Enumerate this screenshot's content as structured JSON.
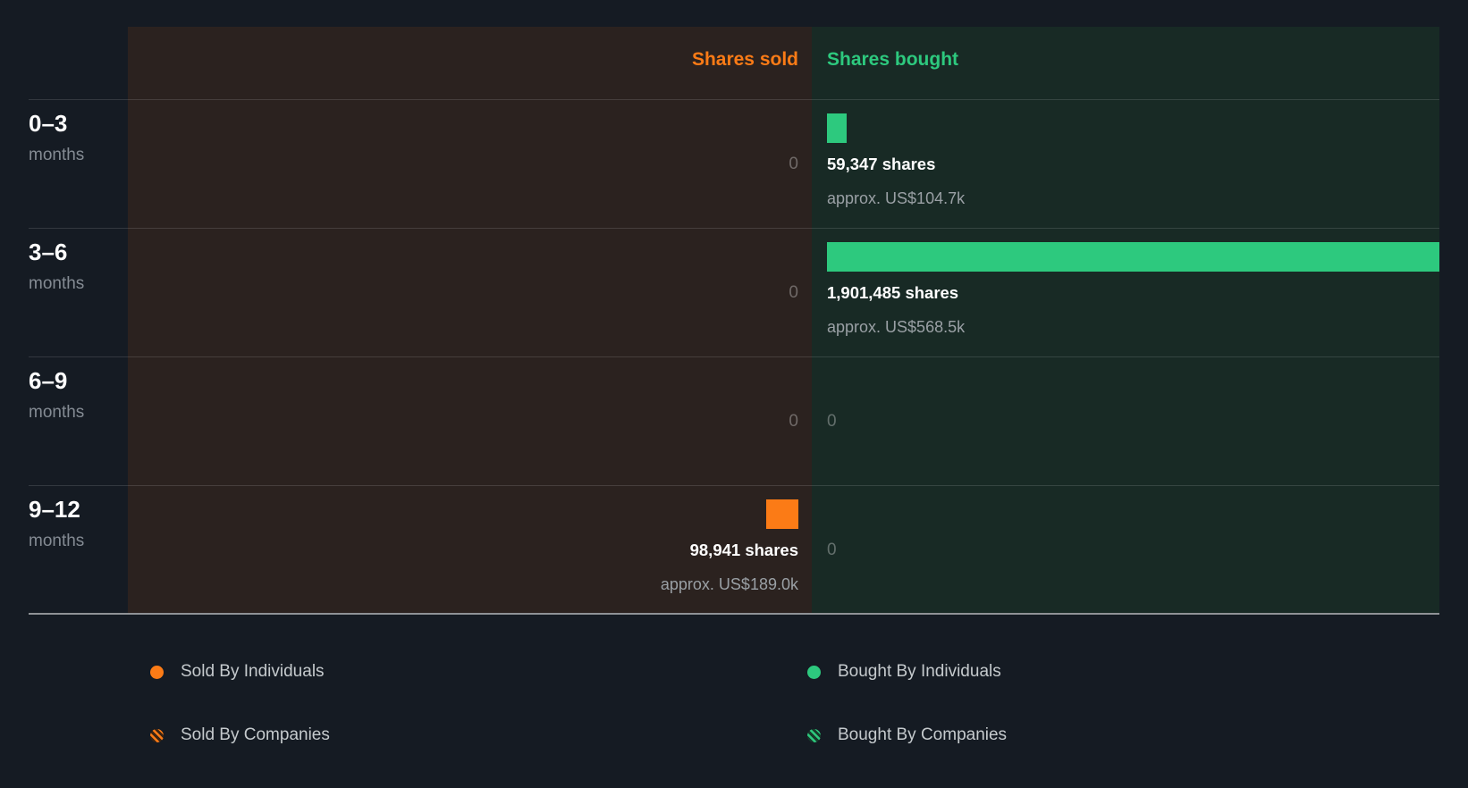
{
  "header": {
    "sold_label": "Shares sold",
    "bought_label": "Shares bought"
  },
  "colors": {
    "page_bg": "#151b23",
    "sold_accent": "#fb7b16",
    "bought_accent": "#2dc97e",
    "sold_panel_bg": "#2b221f",
    "bought_panel_bg": "#182a25"
  },
  "chart_data": {
    "type": "bar",
    "orientation": "horizontal-diverging",
    "categories": [
      "0–3 months",
      "3–6 months",
      "6–9 months",
      "9–12 months"
    ],
    "series": [
      {
        "name": "Shares sold",
        "values": [
          0,
          0,
          0,
          98941
        ]
      },
      {
        "name": "Shares bought",
        "values": [
          59347,
          1901485,
          0,
          0
        ]
      }
    ],
    "max_shares": 1901485,
    "legend_position": "bottom",
    "rows": [
      {
        "period": "0–3",
        "period_unit": "months",
        "sold_shares": 0,
        "sold_label": "0",
        "sold_approx": "",
        "bought_shares": 59347,
        "bought_label": "59,347 shares",
        "bought_approx": "approx. US$104.7k"
      },
      {
        "period": "3–6",
        "period_unit": "months",
        "sold_shares": 0,
        "sold_label": "0",
        "sold_approx": "",
        "bought_shares": 1901485,
        "bought_label": "1,901,485 shares",
        "bought_approx": "approx. US$568.5k"
      },
      {
        "period": "6–9",
        "period_unit": "months",
        "sold_shares": 0,
        "sold_label": "0",
        "sold_approx": "",
        "bought_shares": 0,
        "bought_label": "0",
        "bought_approx": ""
      },
      {
        "period": "9–12",
        "period_unit": "months",
        "sold_shares": 98941,
        "sold_label": "98,941 shares",
        "sold_approx": "approx. US$189.0k",
        "bought_shares": 0,
        "bought_label": "0",
        "bought_approx": ""
      }
    ]
  },
  "legend": {
    "items": [
      {
        "label": "Sold By Individuals"
      },
      {
        "label": "Sold By Companies"
      },
      {
        "label": "Bought By Individuals"
      },
      {
        "label": "Bought By Companies"
      }
    ]
  }
}
